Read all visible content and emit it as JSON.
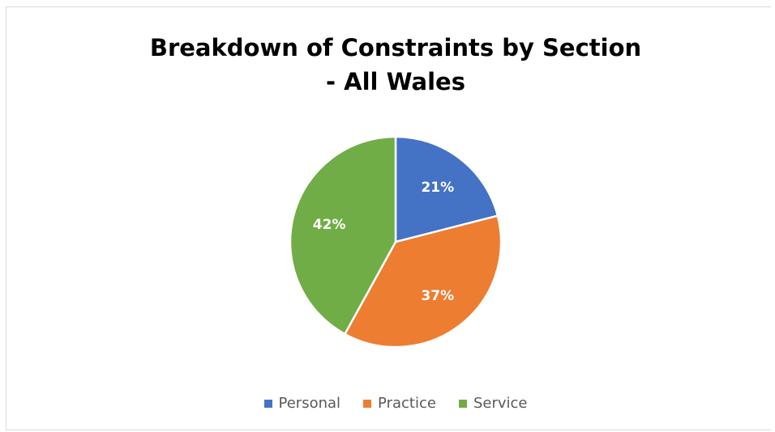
{
  "chart_data": {
    "type": "pie",
    "title": [
      "Breakdown of Constraints by Section",
      "- All Wales"
    ],
    "categories": [
      "Personal",
      "Practice",
      "Service"
    ],
    "values": [
      21,
      37,
      42
    ],
    "labels": [
      "21%",
      "37%",
      "42%"
    ],
    "colors": [
      "#4472c4",
      "#ed7d31",
      "#70ad47"
    ],
    "legend": "bottom"
  }
}
